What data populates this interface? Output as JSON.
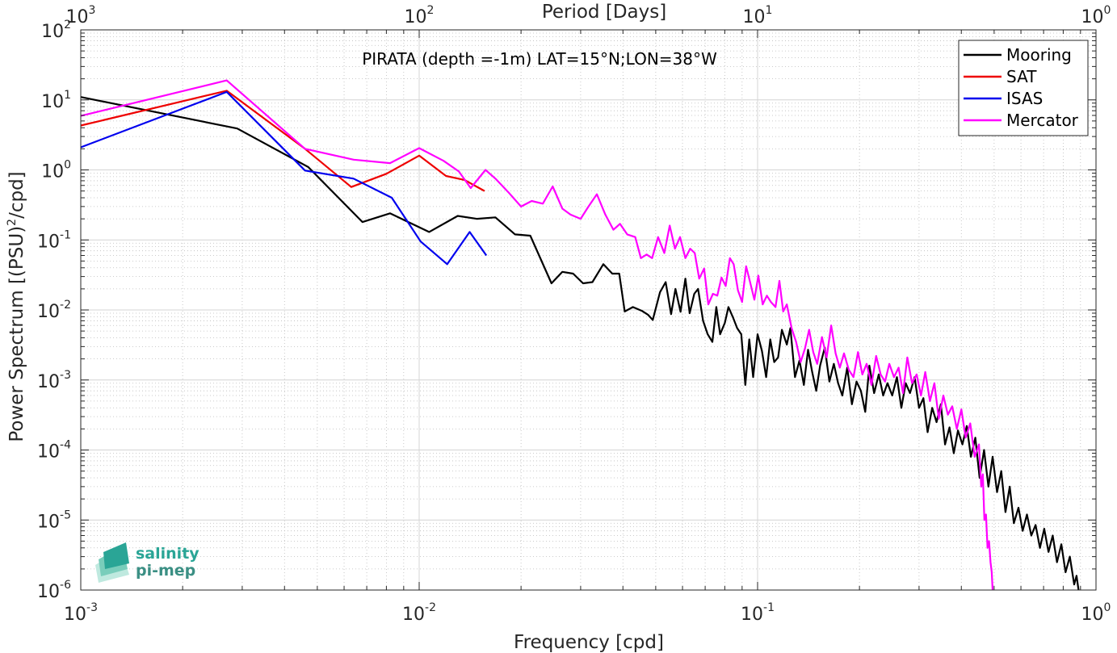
{
  "chart_data": {
    "type": "line",
    "title": "PIRATA (depth =-1m) LAT=15°N;LON=38°W",
    "xlabel": "Frequency [cpd]",
    "ylabel": "Power Spectrum [(PSU)",
    "ylabel_sup": "2",
    "ylabel_tail": "/cpd]",
    "top_xlabel": "Period [Days]",
    "x_scale": "log",
    "y_scale": "log",
    "xlim": [
      0.001,
      1
    ],
    "ylim": [
      1e-06,
      100
    ],
    "grid": true,
    "legend_position": "top-right",
    "x_ticks": [
      {
        "base": "10",
        "exp": "-3",
        "v": 0.001
      },
      {
        "base": "10",
        "exp": "-2",
        "v": 0.01
      },
      {
        "base": "10",
        "exp": "-1",
        "v": 0.1
      },
      {
        "base": "10",
        "exp": "0",
        "v": 1
      }
    ],
    "top_ticks": [
      {
        "base": "10",
        "exp": "3",
        "v": 0.001
      },
      {
        "base": "10",
        "exp": "2",
        "v": 0.01
      },
      {
        "base": "10",
        "exp": "1",
        "v": 0.1
      },
      {
        "base": "10",
        "exp": "0",
        "v": 1
      }
    ],
    "y_ticks": [
      {
        "base": "10",
        "exp": "-6",
        "v": 1e-06
      },
      {
        "base": "10",
        "exp": "-5",
        "v": 1e-05
      },
      {
        "base": "10",
        "exp": "-4",
        "v": 0.0001
      },
      {
        "base": "10",
        "exp": "-3",
        "v": 0.001
      },
      {
        "base": "10",
        "exp": "-2",
        "v": 0.01
      },
      {
        "base": "10",
        "exp": "-1",
        "v": 0.1
      },
      {
        "base": "10",
        "exp": "0",
        "v": 1
      },
      {
        "base": "10",
        "exp": "1",
        "v": 10
      },
      {
        "base": "10",
        "exp": "2",
        "v": 100
      }
    ],
    "series": [
      {
        "name": "Mooring",
        "color": "#000000",
        "points": [
          [
            0.001,
            11
          ],
          [
            0.0029,
            3.9
          ],
          [
            0.0047,
            1.1
          ],
          [
            0.0068,
            0.18
          ],
          [
            0.0082,
            0.24
          ],
          [
            0.0107,
            0.13
          ],
          [
            0.013,
            0.22
          ],
          [
            0.0148,
            0.2
          ],
          [
            0.0168,
            0.21
          ],
          [
            0.0192,
            0.12
          ],
          [
            0.0213,
            0.115
          ],
          [
            0.0246,
            0.024
          ],
          [
            0.0265,
            0.035
          ],
          [
            0.0285,
            0.033
          ],
          [
            0.0305,
            0.024
          ],
          [
            0.0325,
            0.025
          ],
          [
            0.035,
            0.045
          ],
          [
            0.0372,
            0.033
          ],
          [
            0.039,
            0.033
          ],
          [
            0.0405,
            0.0095
          ],
          [
            0.0428,
            0.011
          ],
          [
            0.0455,
            0.0097
          ],
          [
            0.0475,
            0.0085
          ],
          [
            0.049,
            0.0072
          ],
          [
            0.0515,
            0.018
          ],
          [
            0.0535,
            0.025
          ],
          [
            0.0555,
            0.0087
          ],
          [
            0.0572,
            0.02
          ],
          [
            0.0592,
            0.0094
          ],
          [
            0.0612,
            0.028
          ],
          [
            0.063,
            0.009
          ],
          [
            0.065,
            0.017
          ],
          [
            0.0667,
            0.02
          ],
          [
            0.069,
            0.007
          ],
          [
            0.0712,
            0.0045
          ],
          [
            0.0735,
            0.0035
          ],
          [
            0.0755,
            0.011
          ],
          [
            0.0775,
            0.0045
          ],
          [
            0.08,
            0.0065
          ],
          [
            0.082,
            0.011
          ],
          [
            0.0845,
            0.0079
          ],
          [
            0.087,
            0.0055
          ],
          [
            0.0895,
            0.0045
          ],
          [
            0.092,
            0.00085
          ],
          [
            0.0945,
            0.0038
          ],
          [
            0.097,
            0.0011
          ],
          [
            0.1,
            0.0045
          ],
          [
            0.103,
            0.0026
          ],
          [
            0.106,
            0.0011
          ],
          [
            0.109,
            0.0038
          ],
          [
            0.112,
            0.0018
          ],
          [
            0.115,
            0.0021
          ],
          [
            0.118,
            0.0052
          ],
          [
            0.122,
            0.0032
          ],
          [
            0.125,
            0.0055
          ],
          [
            0.129,
            0.0011
          ],
          [
            0.133,
            0.0019
          ],
          [
            0.137,
            0.00085
          ],
          [
            0.141,
            0.0027
          ],
          [
            0.145,
            0.0013
          ],
          [
            0.149,
            0.0007
          ],
          [
            0.153,
            0.0016
          ],
          [
            0.158,
            0.0029
          ],
          [
            0.163,
            0.00095
          ],
          [
            0.168,
            0.0017
          ],
          [
            0.173,
            0.0009
          ],
          [
            0.178,
            0.0006
          ],
          [
            0.184,
            0.0015
          ],
          [
            0.19,
            0.00045
          ],
          [
            0.196,
            0.00095
          ],
          [
            0.202,
            0.0007
          ],
          [
            0.208,
            0.00035
          ],
          [
            0.214,
            0.0016
          ],
          [
            0.221,
            0.00065
          ],
          [
            0.228,
            0.0012
          ],
          [
            0.235,
            0.0006
          ],
          [
            0.242,
            0.0009
          ],
          [
            0.25,
            0.0006
          ],
          [
            0.258,
            0.0011
          ],
          [
            0.266,
            0.0004
          ],
          [
            0.274,
            0.0009
          ],
          [
            0.282,
            0.00065
          ],
          [
            0.291,
            0.0011
          ],
          [
            0.3,
            0.0004
          ],
          [
            0.309,
            0.00055
          ],
          [
            0.318,
            0.00018
          ],
          [
            0.328,
            0.0004
          ],
          [
            0.338,
            0.00025
          ],
          [
            0.348,
            0.00045
          ],
          [
            0.358,
            0.00012
          ],
          [
            0.369,
            0.00021
          ],
          [
            0.38,
            9e-05
          ],
          [
            0.391,
            0.00019
          ],
          [
            0.403,
            0.00012
          ],
          [
            0.415,
            0.00022
          ],
          [
            0.427,
            8e-05
          ],
          [
            0.44,
            0.00015
          ],
          [
            0.453,
            4e-05
          ],
          [
            0.467,
            0.0001
          ],
          [
            0.481,
            3e-05
          ],
          [
            0.495,
            8e-05
          ],
          [
            0.51,
            2.5e-05
          ],
          [
            0.525,
            5e-05
          ],
          [
            0.54,
            1.3e-05
          ],
          [
            0.556,
            3e-05
          ],
          [
            0.572,
            9e-06
          ],
          [
            0.59,
            1.5e-05
          ],
          [
            0.607,
            7e-06
          ],
          [
            0.625,
            1.2e-05
          ],
          [
            0.644,
            6e-06
          ],
          [
            0.663,
            8.5e-06
          ],
          [
            0.683,
            4e-06
          ],
          [
            0.703,
            7.5e-06
          ],
          [
            0.724,
            3.5e-06
          ],
          [
            0.745,
            6e-06
          ],
          [
            0.767,
            2.5e-06
          ],
          [
            0.79,
            4.5e-06
          ],
          [
            0.813,
            1.8e-06
          ],
          [
            0.837,
            3e-06
          ],
          [
            0.862,
            1.2e-06
          ],
          [
            0.876,
            1.6e-06
          ],
          [
            0.888,
            1e-06
          ]
        ]
      },
      {
        "name": "SAT",
        "color": "#ee0000",
        "points": [
          [
            0.001,
            4.3
          ],
          [
            0.0027,
            13.5
          ],
          [
            0.0046,
            2.0
          ],
          [
            0.0063,
            0.57
          ],
          [
            0.008,
            0.88
          ],
          [
            0.01,
            1.6
          ],
          [
            0.012,
            0.82
          ],
          [
            0.0136,
            0.72
          ],
          [
            0.0156,
            0.5
          ]
        ]
      },
      {
        "name": "ISAS",
        "color": "#0000ee",
        "points": [
          [
            0.001,
            2.1
          ],
          [
            0.0027,
            13
          ],
          [
            0.0046,
            0.98
          ],
          [
            0.0064,
            0.75
          ],
          [
            0.0083,
            0.4
          ],
          [
            0.0101,
            0.095
          ],
          [
            0.0121,
            0.045
          ],
          [
            0.0141,
            0.13
          ],
          [
            0.0158,
            0.06
          ]
        ]
      },
      {
        "name": "Mercator",
        "color": "#ff00ff",
        "points": [
          [
            0.001,
            5.9
          ],
          [
            0.0027,
            19
          ],
          [
            0.0046,
            2.0
          ],
          [
            0.0064,
            1.4
          ],
          [
            0.0082,
            1.25
          ],
          [
            0.01,
            2.05
          ],
          [
            0.0118,
            1.35
          ],
          [
            0.0131,
            0.95
          ],
          [
            0.0142,
            0.55
          ],
          [
            0.0157,
            1.0
          ],
          [
            0.0168,
            0.75
          ],
          [
            0.0185,
            0.46
          ],
          [
            0.02,
            0.3
          ],
          [
            0.0215,
            0.36
          ],
          [
            0.0232,
            0.33
          ],
          [
            0.0248,
            0.58
          ],
          [
            0.0265,
            0.28
          ],
          [
            0.028,
            0.23
          ],
          [
            0.03,
            0.2
          ],
          [
            0.0315,
            0.29
          ],
          [
            0.0335,
            0.45
          ],
          [
            0.0355,
            0.23
          ],
          [
            0.0375,
            0.14
          ],
          [
            0.0392,
            0.17
          ],
          [
            0.0412,
            0.12
          ],
          [
            0.0435,
            0.11
          ],
          [
            0.0452,
            0.055
          ],
          [
            0.047,
            0.062
          ],
          [
            0.0488,
            0.055
          ],
          [
            0.0508,
            0.11
          ],
          [
            0.053,
            0.065
          ],
          [
            0.055,
            0.16
          ],
          [
            0.057,
            0.075
          ],
          [
            0.059,
            0.11
          ],
          [
            0.0612,
            0.055
          ],
          [
            0.0632,
            0.075
          ],
          [
            0.0652,
            0.065
          ],
          [
            0.0672,
            0.028
          ],
          [
            0.0695,
            0.039
          ],
          [
            0.0715,
            0.012
          ],
          [
            0.0738,
            0.017
          ],
          [
            0.076,
            0.016
          ],
          [
            0.0782,
            0.029
          ],
          [
            0.0805,
            0.022
          ],
          [
            0.0828,
            0.055
          ],
          [
            0.085,
            0.045
          ],
          [
            0.0875,
            0.019
          ],
          [
            0.09,
            0.013
          ],
          [
            0.0925,
            0.042
          ],
          [
            0.095,
            0.025
          ],
          [
            0.0978,
            0.014
          ],
          [
            0.1005,
            0.031
          ],
          [
            0.1035,
            0.012
          ],
          [
            0.1065,
            0.016
          ],
          [
            0.1095,
            0.013
          ],
          [
            0.113,
            0.011
          ],
          [
            0.116,
            0.026
          ],
          [
            0.119,
            0.0095
          ],
          [
            0.122,
            0.012
          ],
          [
            0.126,
            0.0055
          ],
          [
            0.13,
            0.0035
          ],
          [
            0.134,
            0.0018
          ],
          [
            0.138,
            0.0028
          ],
          [
            0.142,
            0.0052
          ],
          [
            0.146,
            0.0025
          ],
          [
            0.15,
            0.0017
          ],
          [
            0.155,
            0.0041
          ],
          [
            0.16,
            0.0021
          ],
          [
            0.165,
            0.006
          ],
          [
            0.17,
            0.0024
          ],
          [
            0.175,
            0.0015
          ],
          [
            0.18,
            0.0024
          ],
          [
            0.186,
            0.0014
          ],
          [
            0.192,
            0.0011
          ],
          [
            0.198,
            0.0025
          ],
          [
            0.204,
            0.0012
          ],
          [
            0.21,
            0.0017
          ],
          [
            0.217,
            0.00085
          ],
          [
            0.224,
            0.0022
          ],
          [
            0.231,
            0.0012
          ],
          [
            0.238,
            0.00095
          ],
          [
            0.245,
            0.0017
          ],
          [
            0.253,
            0.0011
          ],
          [
            0.261,
            0.0015
          ],
          [
            0.269,
            0.00065
          ],
          [
            0.277,
            0.0021
          ],
          [
            0.286,
            0.0009
          ],
          [
            0.295,
            0.0012
          ],
          [
            0.304,
            0.0006
          ],
          [
            0.313,
            0.0013
          ],
          [
            0.323,
            0.0005
          ],
          [
            0.333,
            0.0009
          ],
          [
            0.343,
            0.00028
          ],
          [
            0.354,
            0.0006
          ],
          [
            0.365,
            0.00032
          ],
          [
            0.376,
            0.00042
          ],
          [
            0.388,
            0.0002
          ],
          [
            0.4,
            0.00038
          ],
          [
            0.412,
            0.00015
          ],
          [
            0.425,
            0.00024
          ],
          [
            0.438,
            8e-05
          ],
          [
            0.451,
            0.00012
          ],
          [
            0.458,
            3e-05
          ],
          [
            0.463,
            4.5e-05
          ],
          [
            0.468,
            1e-05
          ],
          [
            0.473,
            1.2e-05
          ],
          [
            0.478,
            4e-06
          ],
          [
            0.483,
            5e-06
          ],
          [
            0.488,
            2.5e-06
          ],
          [
            0.492,
            1.8e-06
          ],
          [
            0.495,
            1e-06
          ]
        ]
      }
    ]
  },
  "logo": {
    "line1": "salinity",
    "line2": "pi-mep"
  }
}
